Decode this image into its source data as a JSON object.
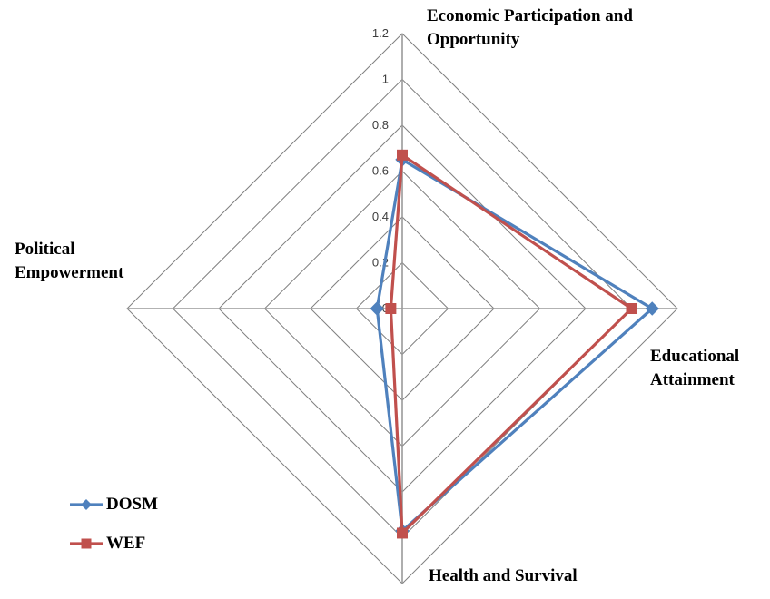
{
  "figure": {
    "background": "#ffffff"
  },
  "chart_data": {
    "type": "radar",
    "categories": [
      "Economic Participation and Opportunity",
      "Educational Attainment",
      "Health and Survival",
      "Political Empowerment"
    ],
    "series": [
      {
        "name": "DOSM",
        "color": "#4F81BD",
        "marker": "diamond",
        "values": [
          0.65,
          1.09,
          0.97,
          0.11
        ]
      },
      {
        "name": "WEF",
        "color": "#C0504D",
        "marker": "square",
        "values": [
          0.67,
          1.0,
          0.98,
          0.05
        ]
      }
    ],
    "ticks": [
      0,
      0.2,
      0.4,
      0.6,
      0.8,
      1,
      1.2
    ],
    "tick_labels": [
      "0",
      "0.2",
      "0.4",
      "0.6",
      "0.8",
      "1",
      "1.2"
    ],
    "rmin": 0,
    "rmax": 1.2,
    "grid": true,
    "grid_color": "#808080",
    "spoke_color": "#999999",
    "tick_color": "#3d3d3d",
    "legend_position": "bottom-left"
  }
}
